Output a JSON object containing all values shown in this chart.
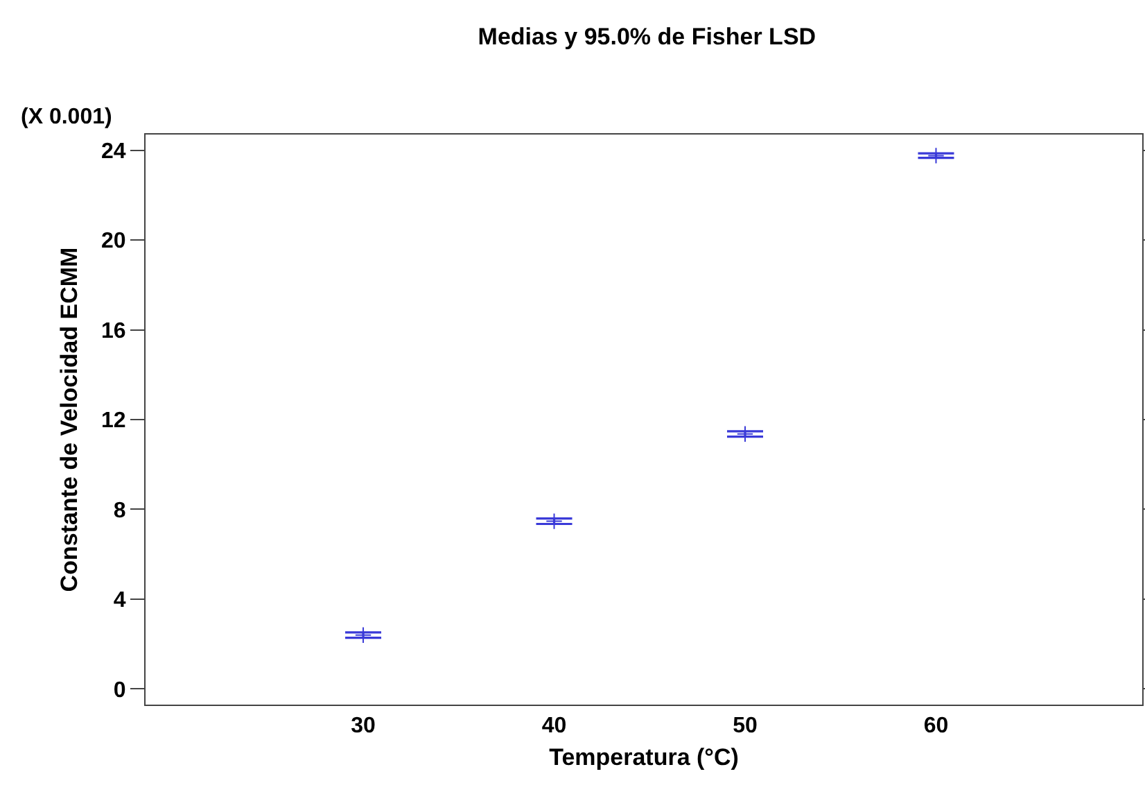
{
  "chart_data": {
    "type": "scatter",
    "title": "Medias y 95.0% de Fisher LSD",
    "xlabel": "Temperatura (°C)",
    "ylabel": "Constante de Velocidad ECMM",
    "annotations": [
      "(X 0.001)"
    ],
    "categories": [
      "30",
      "40",
      "50",
      "60"
    ],
    "series": [
      {
        "color": "#3a3ad8",
        "values": [
          2.4,
          7.47,
          11.36,
          23.76
        ],
        "errors": [
          0.12,
          0.12,
          0.12,
          0.1
        ]
      }
    ],
    "marker": "cross",
    "ylim": [
      -0.7,
      24.7
    ],
    "yticks": [
      0,
      4,
      8,
      12,
      16,
      20,
      24
    ],
    "grid": false,
    "legend": false
  }
}
